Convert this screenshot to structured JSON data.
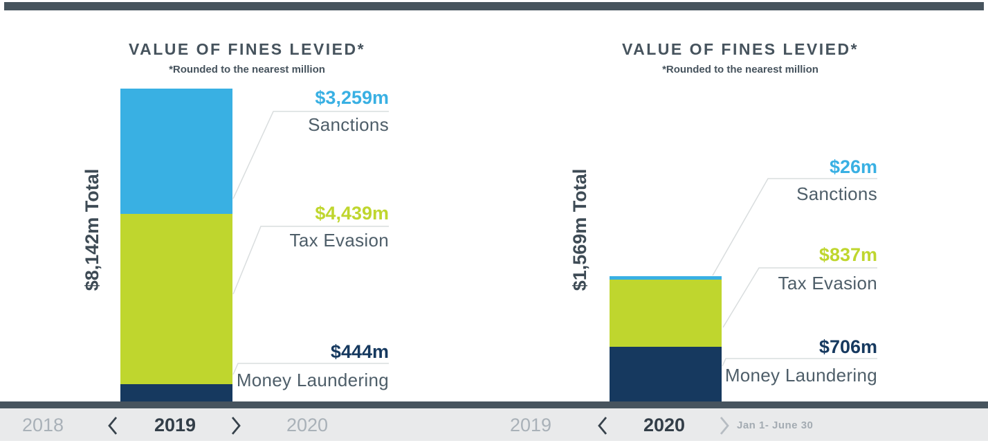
{
  "page": {
    "background": "#FFFFFF",
    "top_band_color": "#47545E",
    "divider_color": "#47545E",
    "nav_background": "#E9EAEB",
    "callout_line_color": "#D9DDDE"
  },
  "chart_data": [
    {
      "type": "bar",
      "stacked": true,
      "title": "VALUE OF FINES LEVIED*",
      "subtitle": "*Rounded to the nearest million",
      "period": "2019",
      "unit": "USD millions",
      "total": 8142,
      "total_label": "$8,142m Total",
      "categories": [
        "Sanctions",
        "Tax Evasion",
        "Money Laundering"
      ],
      "series": [
        {
          "name": "Sanctions",
          "value": 3259,
          "label": "$3,259m",
          "color": "#39B0E3"
        },
        {
          "name": "Tax Evasion",
          "value": 4439,
          "label": "$4,439m",
          "color": "#BFD62E"
        },
        {
          "name": "Money Laundering",
          "value": 444,
          "label": "$444m",
          "color": "#16395F"
        }
      ],
      "legend_position": "right-callouts",
      "grid": false,
      "nav": {
        "prev": "2018",
        "current": "2019",
        "next": "2020",
        "note": ""
      }
    },
    {
      "type": "bar",
      "stacked": true,
      "title": "VALUE OF FINES LEVIED*",
      "subtitle": "*Rounded to the nearest million",
      "period": "2020",
      "unit": "USD millions",
      "total": 1569,
      "total_label": "$1,569m Total",
      "categories": [
        "Sanctions",
        "Tax Evasion",
        "Money Laundering"
      ],
      "series": [
        {
          "name": "Sanctions",
          "value": 26,
          "label": "$26m",
          "color": "#39B0E3"
        },
        {
          "name": "Tax Evasion",
          "value": 837,
          "label": "$837m",
          "color": "#BFD62E"
        },
        {
          "name": "Money Laundering",
          "value": 706,
          "label": "$706m",
          "color": "#16395F"
        }
      ],
      "legend_position": "right-callouts",
      "grid": false,
      "nav": {
        "prev": "2019",
        "current": "2020",
        "next": "",
        "note": "Jan 1- June 30"
      }
    }
  ]
}
